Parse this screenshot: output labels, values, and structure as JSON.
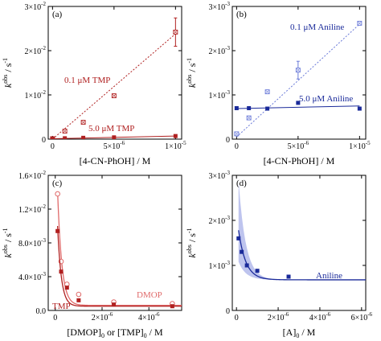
{
  "colors": {
    "red": "#b02020",
    "red_light": "#e06a6a",
    "blue": "#1a2a9a",
    "blue_light": "#6a7ad8",
    "blue_band": "#8893e0",
    "axis": "#000000"
  },
  "chart_data": [
    {
      "id": "a",
      "type": "scatter",
      "panel_label": "(a)",
      "xlabel": "[4-CN-PhOH] / M",
      "ylabel_main": "k",
      "ylabel_sup": "obs",
      "ylabel_unit": " / s",
      "ylabel_unit_sup": "-1",
      "xlim": [
        -3.5e-07,
        1.05e-05
      ],
      "ylim": [
        0,
        0.03
      ],
      "yticks": [
        {
          "value": 0,
          "base": "0",
          "exp": ""
        },
        {
          "value": 0.01,
          "base": "1×10",
          "exp": "-2"
        },
        {
          "value": 0.02,
          "base": "2×10",
          "exp": "-2"
        },
        {
          "value": 0.03,
          "base": "3×10",
          "exp": "-2"
        }
      ],
      "xticks": [
        {
          "value": 0,
          "base": "0",
          "exp": ""
        },
        {
          "value": 5e-06,
          "base": "5×10",
          "exp": "-6"
        },
        {
          "value": 1e-05,
          "base": "1×10",
          "exp": "-5"
        }
      ],
      "series": [
        {
          "name": "0.1 μM TMP",
          "marker": "open-square",
          "color_key": "red",
          "x": [
            0,
            1e-06,
            2.5e-06,
            5e-06,
            1e-05
          ],
          "y": [
            0.0001,
            0.0018,
            0.0038,
            0.0098,
            0.0242
          ],
          "err": [
            0,
            0,
            0,
            0,
            0.0032
          ],
          "fit": {
            "x": [
              0,
              1e-05
            ],
            "y": [
              0,
              0.0238
            ],
            "style": "dotted"
          }
        },
        {
          "name": "5.0 μM TMP",
          "marker": "filled-square",
          "color_key": "red",
          "x": [
            0,
            1e-06,
            2.5e-06,
            5e-06,
            1e-05
          ],
          "y": [
            0.0001,
            0.0002,
            0.0003,
            0.0004,
            0.0007
          ],
          "err": [
            0,
            0,
            0,
            0,
            0
          ],
          "fit": {
            "x": [
              0,
              1e-05
            ],
            "y": [
              0.0001,
              0.0007
            ],
            "style": "solid"
          }
        }
      ]
    },
    {
      "id": "b",
      "type": "scatter",
      "panel_label": "(b)",
      "xlabel": "[4-CN-PhOH] / M",
      "ylabel_main": "k",
      "ylabel_sup": "obs",
      "ylabel_unit": " / s",
      "ylabel_unit_sup": "-1",
      "xlim": [
        -3.5e-07,
        1.05e-05
      ],
      "ylim": [
        0,
        0.003
      ],
      "yticks": [
        {
          "value": 0,
          "base": "0",
          "exp": ""
        },
        {
          "value": 0.001,
          "base": "1×10",
          "exp": "-3"
        },
        {
          "value": 0.002,
          "base": "2×10",
          "exp": "-3"
        },
        {
          "value": 0.003,
          "base": "3×10",
          "exp": "-3"
        }
      ],
      "xticks": [
        {
          "value": 0,
          "base": "0",
          "exp": ""
        },
        {
          "value": 5e-06,
          "base": "5×10",
          "exp": "-6"
        },
        {
          "value": 1e-05,
          "base": "1×10",
          "exp": "-5"
        }
      ],
      "series": [
        {
          "name": "0.1 μM Aniline",
          "marker": "open-square",
          "color_key": "blue_light",
          "x": [
            0,
            1e-06,
            2.5e-06,
            5e-06,
            1e-05
          ],
          "y": [
            0.00012,
            0.00048,
            0.00107,
            0.00156,
            0.00262
          ],
          "err": [
            0,
            0,
            0,
            0.0002,
            0
          ],
          "fit": {
            "x": [
              0,
              1e-05
            ],
            "y": [
              5e-05,
              0.0026
            ],
            "style": "dotted"
          }
        },
        {
          "name": "5.0 μM Aniline",
          "marker": "filled-square",
          "color_key": "blue",
          "x": [
            0,
            1e-06,
            2.5e-06,
            5e-06,
            1e-05
          ],
          "y": [
            0.0007,
            0.0007,
            0.00069,
            0.00082,
            0.00069
          ],
          "err": [
            0,
            0,
            0,
            0,
            0
          ],
          "fit": {
            "x": [
              0,
              1e-05
            ],
            "y": [
              0.00069,
              0.00075
            ],
            "style": "solid"
          }
        }
      ]
    },
    {
      "id": "c",
      "type": "scatter",
      "panel_label": "(c)",
      "xlabel": "[DMOP]",
      "xlabel_sub": "0",
      "xlabel_mid": " or [TMP]",
      "xlabel_sub2": "0",
      "xlabel_end": " / M",
      "ylabel_main": "k",
      "ylabel_sup": "obs",
      "ylabel_unit": " / s",
      "ylabel_unit_sup": "-1",
      "xlim": [
        -3e-07,
        5.4e-06
      ],
      "ylim": [
        0,
        0.016
      ],
      "yticks": [
        {
          "value": 0,
          "base": "0.0",
          "exp": ""
        },
        {
          "value": 0.004,
          "base": "4.0×10",
          "exp": "-3"
        },
        {
          "value": 0.008,
          "base": "8.0×10",
          "exp": "-3"
        },
        {
          "value": 0.012,
          "base": "1.2×10",
          "exp": "-2"
        },
        {
          "value": 0.016,
          "base": "1.6×10",
          "exp": "-2"
        }
      ],
      "xticks": [
        {
          "value": 0,
          "base": "0",
          "exp": ""
        },
        {
          "value": 2e-06,
          "base": "2×10",
          "exp": "-6"
        },
        {
          "value": 4e-06,
          "base": "4×10",
          "exp": "-6"
        }
      ],
      "series": [
        {
          "name": "DMOP",
          "marker": "open-circle",
          "color_key": "red_light",
          "x": [
            1e-07,
            2.5e-07,
            5e-07,
            1e-06,
            2.5e-06,
            5e-06
          ],
          "y": [
            0.0138,
            0.0058,
            0.0031,
            0.0019,
            0.001,
            0.0008
          ],
          "err": [
            0.0002,
            0,
            0,
            0,
            0,
            0
          ],
          "fit_decay": {
            "base": 0.0006,
            "amp": 0.0135,
            "x0": 1e-07,
            "tau": 1.8e-07,
            "style": "solid"
          }
        },
        {
          "name": "TMP",
          "marker": "filled-square",
          "color_key": "red",
          "x": [
            1e-07,
            2.5e-07,
            5e-07,
            1e-06,
            2.5e-06,
            5e-06
          ],
          "y": [
            0.0094,
            0.0046,
            0.0027,
            0.0012,
            0.0007,
            0.0005
          ],
          "err": [
            0,
            0,
            0,
            0,
            0,
            0
          ],
          "fit_decay": {
            "base": 0.0005,
            "amp": 0.0095,
            "x0": 1e-07,
            "tau": 1.6e-07,
            "style": "solid"
          }
        }
      ]
    },
    {
      "id": "d",
      "type": "scatter",
      "panel_label": "(d)",
      "xlabel": "[A]",
      "xlabel_sub": "0",
      "xlabel_end": " / M",
      "ylabel_main": "k",
      "ylabel_sup": "obs",
      "ylabel_unit": " / s",
      "ylabel_unit_sup": "-1",
      "xlim": [
        -2e-07,
        6.2e-06
      ],
      "ylim": [
        0,
        0.003
      ],
      "yticks": [
        {
          "value": 0,
          "base": "0",
          "exp": ""
        },
        {
          "value": 0.001,
          "base": "1×10",
          "exp": "-3"
        },
        {
          "value": 0.002,
          "base": "2×10",
          "exp": "-3"
        },
        {
          "value": 0.003,
          "base": "3×10",
          "exp": "-3"
        }
      ],
      "xticks": [
        {
          "value": 0,
          "base": "0",
          "exp": ""
        },
        {
          "value": 2e-06,
          "base": "2×10",
          "exp": "-6"
        },
        {
          "value": 4e-06,
          "base": "4×10",
          "exp": "-6"
        },
        {
          "value": 6e-06,
          "base": "6×10",
          "exp": "-6"
        }
      ],
      "series": [
        {
          "name": "Aniline",
          "marker": "filled-square",
          "color_key": "blue",
          "x": [
            1e-07,
            2.5e-07,
            5e-07,
            1e-06,
            2.5e-06
          ],
          "y": [
            0.0016,
            0.0013,
            0.001,
            0.00088,
            0.00075
          ],
          "err": [
            0,
            0,
            0,
            0,
            0
          ],
          "fit_decay": {
            "base": 0.00068,
            "amp": 0.0011,
            "x0": 1e-07,
            "tau": 3.5e-07,
            "style": "solid"
          },
          "band_decay": {
            "upper_amp": 0.0022,
            "lower_amp": 0.0004,
            "x_end": 5e-06
          }
        }
      ]
    }
  ]
}
